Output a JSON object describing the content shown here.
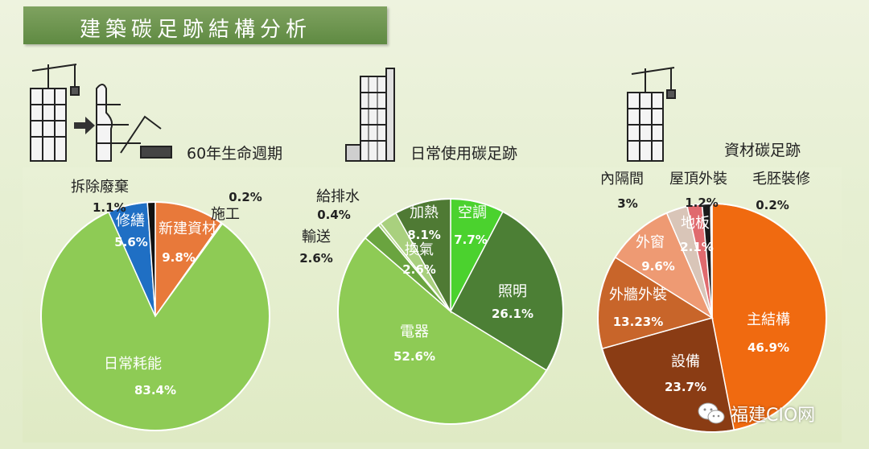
{
  "page": {
    "title": "建築碳足跡結構分析"
  },
  "sections": [
    {
      "heading": "60年生命週期"
    },
    {
      "heading": "日常使用碳足跡"
    },
    {
      "heading": "資材碳足跡"
    }
  ],
  "chart_data": [
    {
      "type": "pie",
      "title": "60年生命週期",
      "slices": [
        {
          "label": "日常耗能",
          "value": 83.4,
          "value_text": "83.4%",
          "color": "#8ecb55"
        },
        {
          "label": "修繕",
          "value": 5.6,
          "value_text": "5.6%",
          "color": "#1f6fc4"
        },
        {
          "label": "拆除廢棄",
          "value": 1.1,
          "value_text": "1.1%",
          "color": "#111111"
        },
        {
          "label": "新建資材",
          "value": 9.8,
          "value_text": "9.8%",
          "color": "#e8793a"
        },
        {
          "label": "施工",
          "value": 0.2,
          "value_text": "0.2%",
          "color": "#c7c7c7"
        }
      ]
    },
    {
      "type": "pie",
      "title": "日常使用碳足跡",
      "slices": [
        {
          "label": "電器",
          "value": 52.6,
          "value_text": "52.6%",
          "color": "#8ecb55"
        },
        {
          "label": "輸送",
          "value": 2.6,
          "value_text": "2.6%",
          "color": "#6aa43f"
        },
        {
          "label": "給排水",
          "value": 0.4,
          "value_text": "0.4%",
          "color": "#b7d98e"
        },
        {
          "label": "換氣",
          "value": 2.6,
          "value_text": "2.6%",
          "color": "#a9d07e"
        },
        {
          "label": "加熱",
          "value": 8.1,
          "value_text": "8.1%",
          "color": "#4f7a34"
        },
        {
          "label": "空調",
          "value": 7.7,
          "value_text": "7.7%",
          "color": "#4bd22e"
        },
        {
          "label": "照明",
          "value": 26.1,
          "value_text": "26.1%",
          "color": "#4c7f35"
        }
      ]
    },
    {
      "type": "pie",
      "title": "資材碳足跡",
      "slices": [
        {
          "label": "主結構",
          "value": 46.9,
          "value_text": "46.9%",
          "color": "#f06a10"
        },
        {
          "label": "設備",
          "value": 23.7,
          "value_text": "23.7%",
          "color": "#8a3c14"
        },
        {
          "label": "外牆外裝",
          "value": 13.23,
          "value_text": "13.23%",
          "color": "#c8652a"
        },
        {
          "label": "外窗",
          "value": 9.6,
          "value_text": "9.6%",
          "color": "#ee9a73"
        },
        {
          "label": "內隔間",
          "value": 3,
          "value_text": "3%",
          "color": "#d9c5b8"
        },
        {
          "label": "地板",
          "value": 2.1,
          "value_text": "2.1%",
          "color": "#e06a6e"
        },
        {
          "label": "屋頂外裝",
          "value": 1.2,
          "value_text": "1.2%",
          "color": "#1a1a1a"
        },
        {
          "label": "毛胚裝修",
          "value": 0.2,
          "value_text": "0.2%",
          "color": "#bdbdbd"
        }
      ]
    }
  ],
  "watermark": {
    "text": "福建CIO网"
  },
  "colors": {
    "title_bar": "#6b9449",
    "background": "#e8f0d6"
  }
}
